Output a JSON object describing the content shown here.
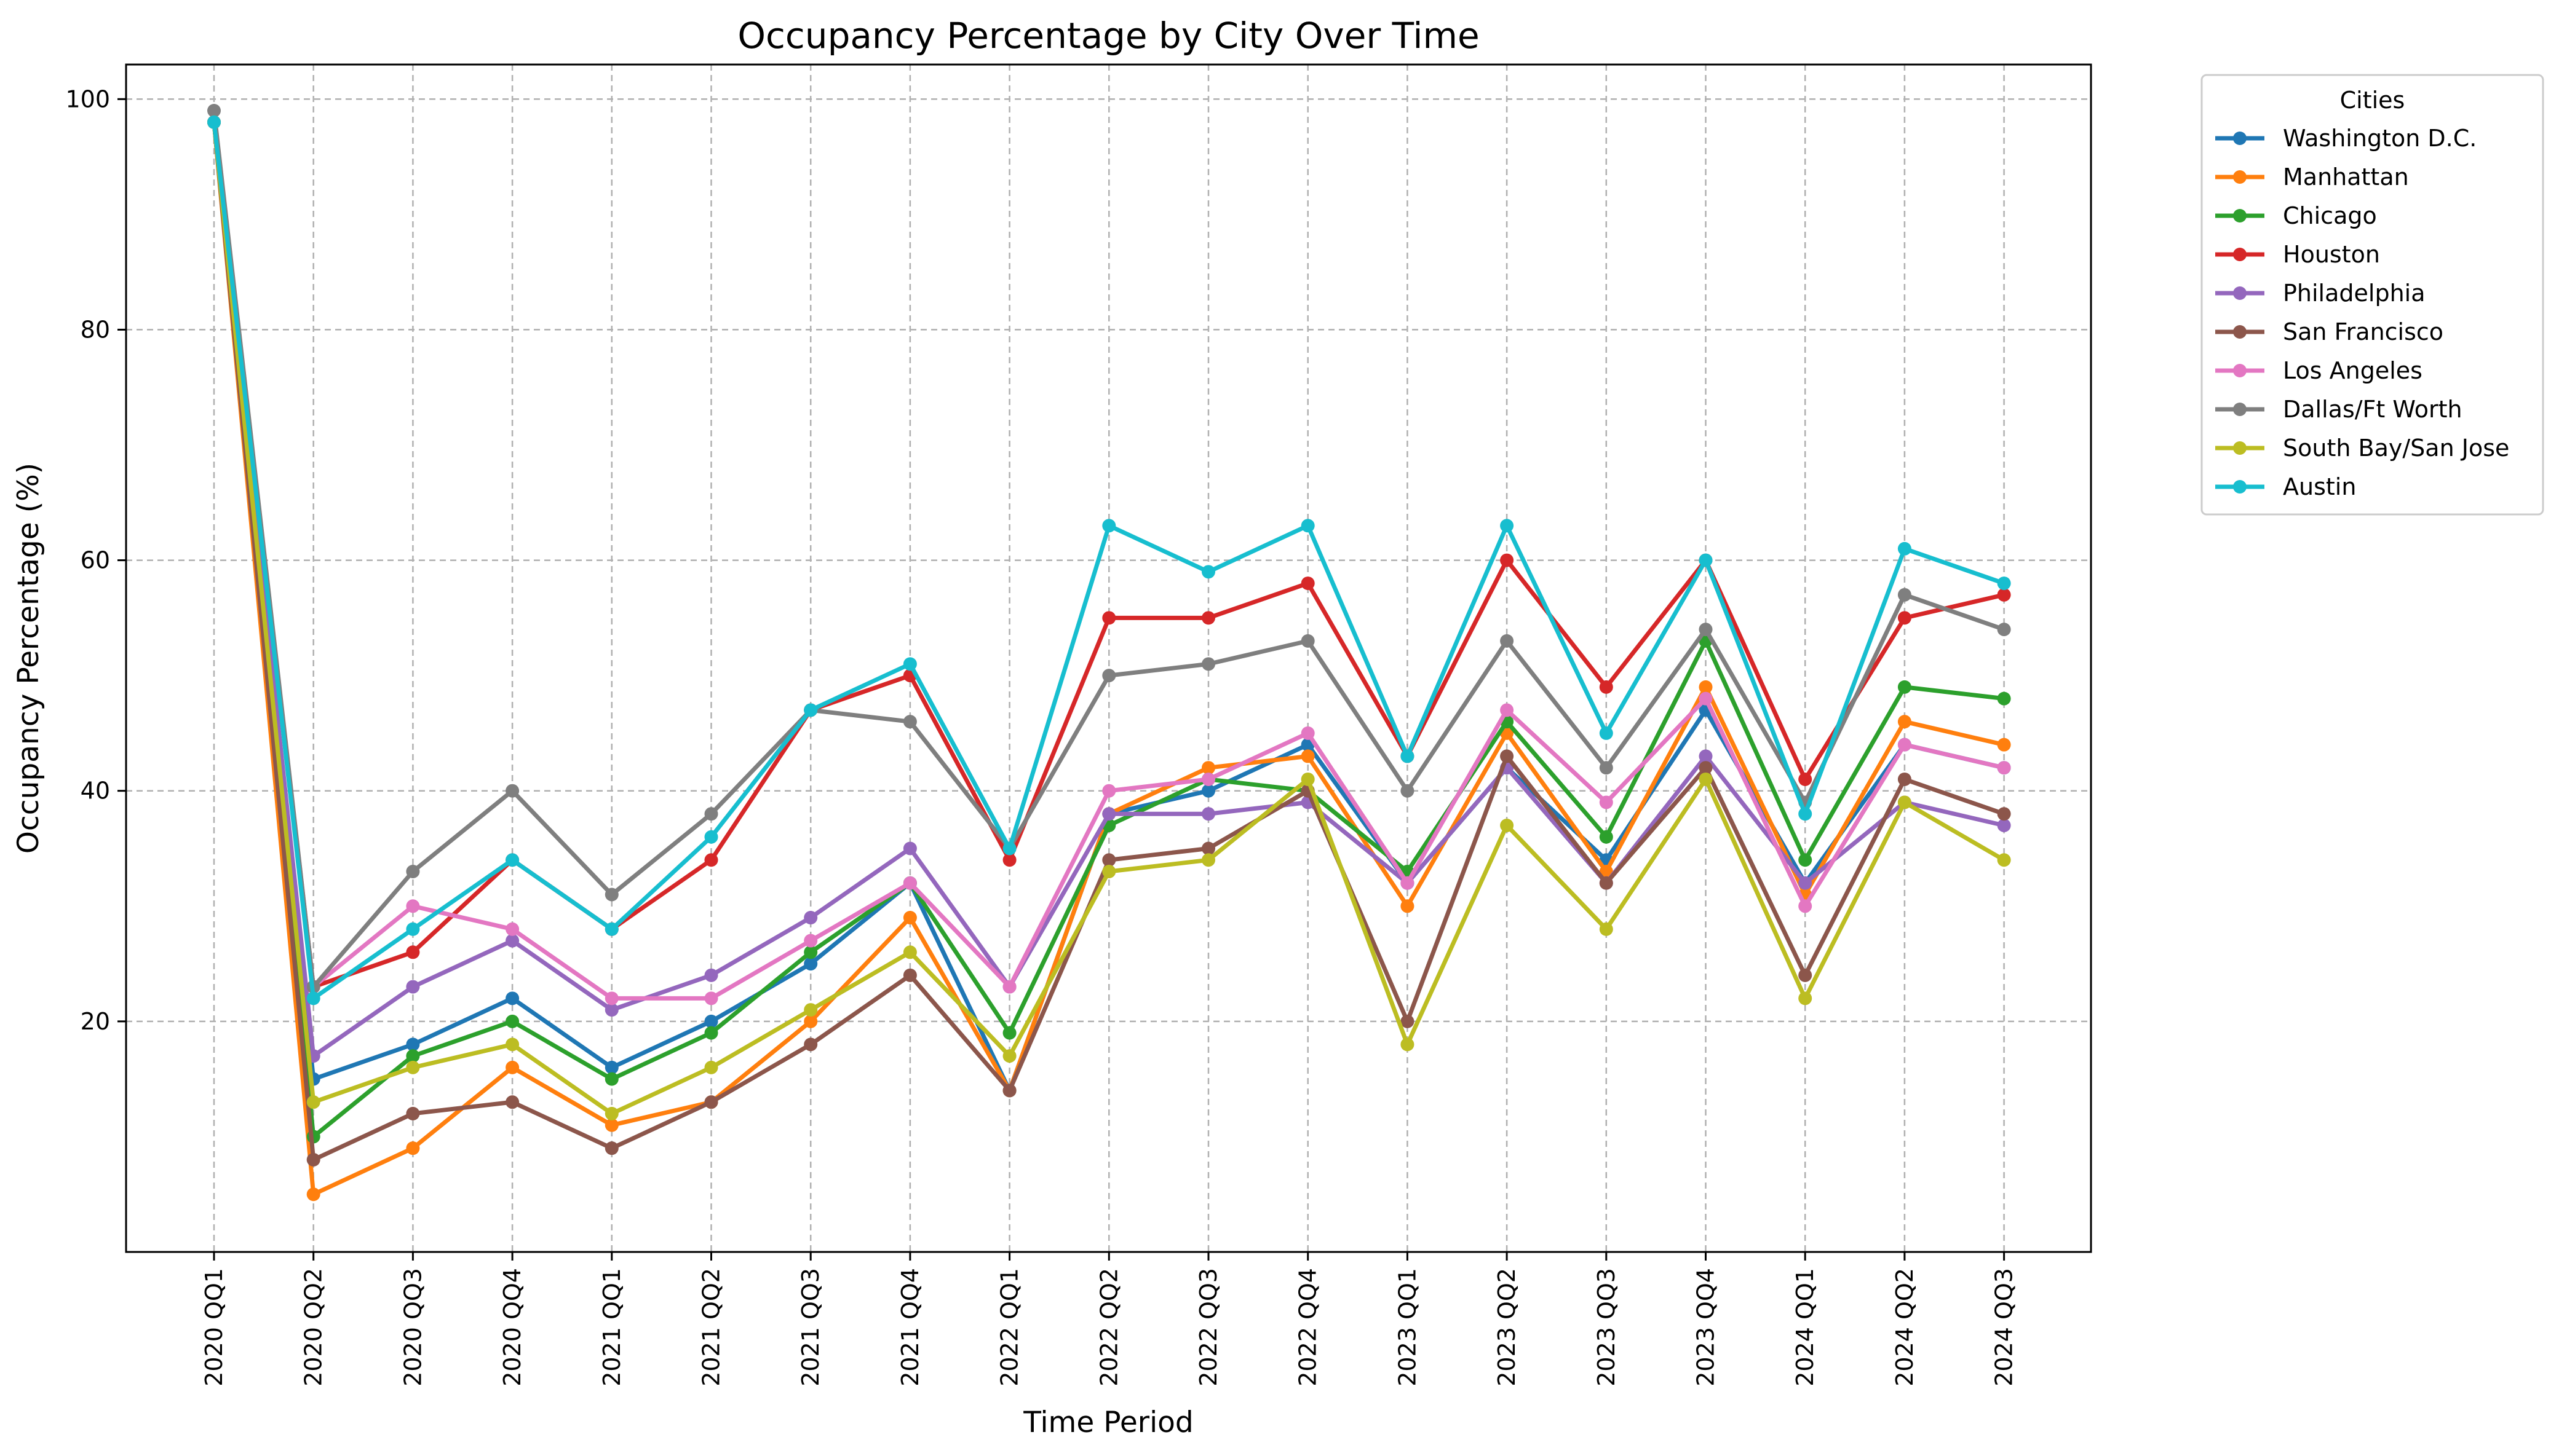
{
  "chart_data": {
    "type": "line",
    "title": "Occupancy Percentage by City Over Time",
    "xlabel": "Time Period",
    "ylabel": "Occupancy Percentage (%)",
    "ylim": [
      0,
      103
    ],
    "yticks": [
      20,
      40,
      60,
      80,
      100
    ],
    "grid": true,
    "legend_title": "Cities",
    "legend_position": "outside-top-right",
    "categories": [
      "2020 QQ1",
      "2020 QQ2",
      "2020 QQ3",
      "2020 QQ4",
      "2021 QQ1",
      "2021 QQ2",
      "2021 QQ3",
      "2021 QQ4",
      "2022 QQ1",
      "2022 QQ2",
      "2022 QQ3",
      "2022 QQ4",
      "2023 QQ1",
      "2023 QQ2",
      "2023 QQ3",
      "2023 QQ4",
      "2024 QQ1",
      "2024 QQ2",
      "2024 QQ3"
    ],
    "series": [
      {
        "name": "Washington D.C.",
        "color": "#1f77b4",
        "values": [
          98,
          15,
          18,
          22,
          16,
          20,
          25,
          32,
          14,
          38,
          40,
          44,
          32,
          42,
          34,
          47,
          32,
          44,
          42
        ]
      },
      {
        "name": "Manhattan",
        "color": "#ff7f0e",
        "values": [
          98,
          5,
          9,
          16,
          11,
          13,
          20,
          29,
          14,
          38,
          42,
          43,
          30,
          45,
          33,
          49,
          31,
          46,
          44
        ]
      },
      {
        "name": "Chicago",
        "color": "#2ca02c",
        "values": [
          98,
          10,
          17,
          20,
          15,
          19,
          26,
          32,
          19,
          37,
          41,
          40,
          33,
          46,
          36,
          53,
          34,
          49,
          48
        ]
      },
      {
        "name": "Houston",
        "color": "#d62728",
        "values": [
          98,
          23,
          26,
          34,
          28,
          34,
          47,
          50,
          34,
          55,
          55,
          58,
          43,
          60,
          49,
          60,
          41,
          55,
          57
        ]
      },
      {
        "name": "Philadelphia",
        "color": "#9467bd",
        "values": [
          98,
          17,
          23,
          27,
          21,
          24,
          29,
          35,
          23,
          38,
          38,
          39,
          32,
          42,
          32,
          43,
          32,
          39,
          37
        ]
      },
      {
        "name": "San Francisco",
        "color": "#8c564b",
        "values": [
          98,
          8,
          12,
          13,
          9,
          13,
          18,
          24,
          14,
          34,
          35,
          40,
          20,
          43,
          32,
          42,
          24,
          41,
          38
        ]
      },
      {
        "name": "Los Angeles",
        "color": "#e377c2",
        "values": [
          98,
          23,
          30,
          28,
          22,
          22,
          27,
          32,
          23,
          40,
          41,
          45,
          32,
          47,
          39,
          48,
          30,
          44,
          42
        ]
      },
      {
        "name": "Dallas/Ft Worth",
        "color": "#7f7f7f",
        "values": [
          99,
          23,
          33,
          40,
          31,
          38,
          47,
          46,
          35,
          50,
          51,
          53,
          40,
          53,
          42,
          54,
          39,
          57,
          54
        ]
      },
      {
        "name": "South Bay/San Jose",
        "color": "#bcbd22",
        "values": [
          98,
          13,
          16,
          18,
          12,
          16,
          21,
          26,
          17,
          33,
          34,
          41,
          18,
          37,
          28,
          41,
          22,
          39,
          34
        ]
      },
      {
        "name": "Austin",
        "color": "#17becf",
        "values": [
          98,
          22,
          28,
          34,
          28,
          36,
          47,
          51,
          35,
          63,
          59,
          63,
          43,
          63,
          45,
          60,
          38,
          61,
          58
        ]
      }
    ]
  }
}
